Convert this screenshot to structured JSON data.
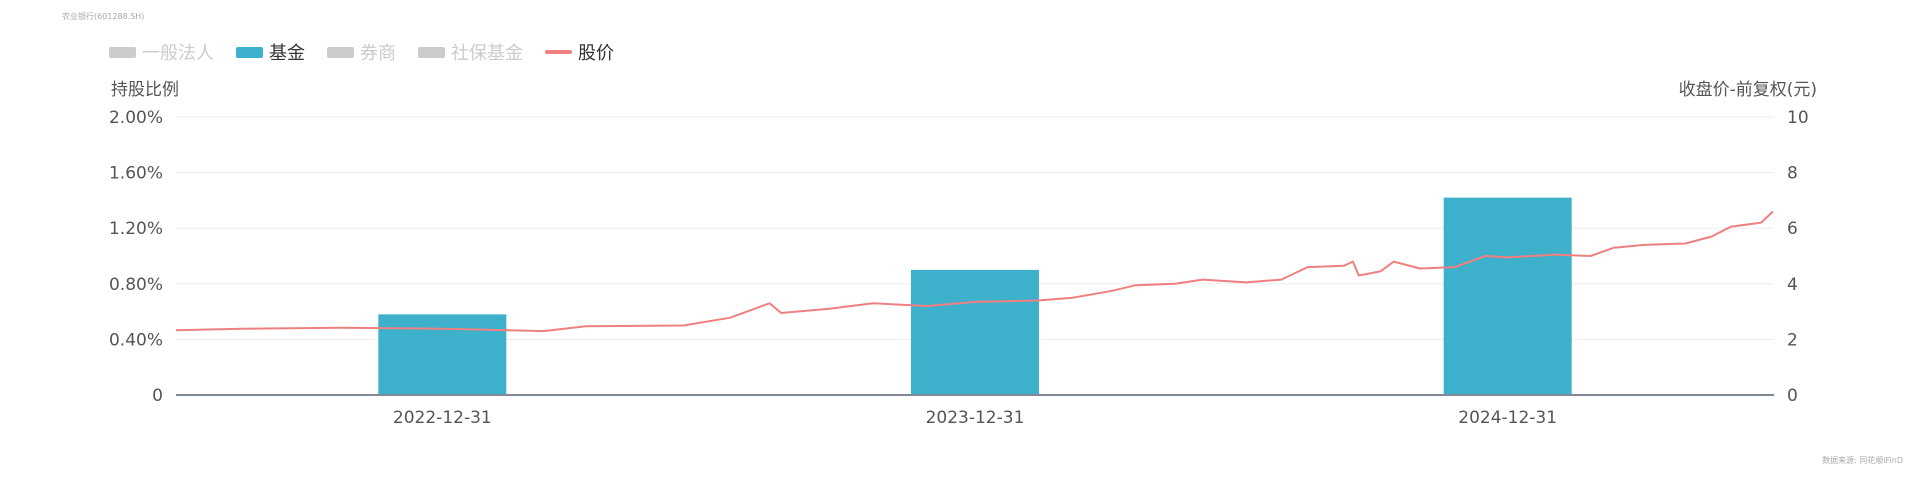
{
  "header": {
    "security": "农业银行(601288.SH)"
  },
  "legend": [
    {
      "label": "一般法人",
      "color": "#cccccc",
      "shape": "rect",
      "active": false
    },
    {
      "label": "基金",
      "color": "#3db0cb",
      "shape": "rect",
      "active": true
    },
    {
      "label": "券商",
      "color": "#cccccc",
      "shape": "rect",
      "active": false
    },
    {
      "label": "社保基金",
      "color": "#cccccc",
      "shape": "rect",
      "active": false
    },
    {
      "label": "股价",
      "color": "#f08080",
      "shape": "line",
      "active": true
    }
  ],
  "footer": {
    "source": "数据来源: 同花顺iFinD"
  },
  "chart_data": {
    "type": "bar+line",
    "categories": [
      "2022-12-31",
      "2023-12-31",
      "2024-12-31"
    ],
    "y_left": {
      "label": "持股比例",
      "ticks": [
        "0",
        "0.40%",
        "0.80%",
        "1.20%",
        "1.60%",
        "2.00%"
      ],
      "range": [
        0,
        2.0
      ],
      "unit": "%"
    },
    "y_right": {
      "label": "收盘价-前复权(元)",
      "ticks": [
        "0",
        "2",
        "4",
        "6",
        "8",
        "10"
      ],
      "range": [
        0,
        10
      ]
    },
    "grid": true,
    "series": [
      {
        "name": "基金",
        "type": "bar",
        "axis": "left",
        "color": "#3db0cb",
        "values": [
          0.58,
          0.9,
          1.42
        ]
      },
      {
        "name": "股价",
        "type": "line",
        "axis": "right",
        "color": "#f08080",
        "points": [
          [
            "2022-07-01",
            2.33
          ],
          [
            "2022-08-15",
            2.38
          ],
          [
            "2022-10-22",
            2.42
          ],
          [
            "2022-12-31",
            2.38
          ],
          [
            "2023-03-10",
            2.3
          ],
          [
            "2023-04-08",
            2.47
          ],
          [
            "2023-06-14",
            2.5
          ],
          [
            "2023-07-16",
            2.78
          ],
          [
            "2023-08-12",
            3.3
          ],
          [
            "2023-08-20",
            2.95
          ],
          [
            "2023-09-22",
            3.1
          ],
          [
            "2023-10-22",
            3.3
          ],
          [
            "2023-11-28",
            3.2
          ],
          [
            "2023-12-31",
            3.35
          ],
          [
            "2024-02-12",
            3.4
          ],
          [
            "2024-03-07",
            3.5
          ],
          [
            "2024-04-03",
            3.75
          ],
          [
            "2024-04-19",
            3.95
          ],
          [
            "2024-05-16",
            4.0
          ],
          [
            "2024-06-04",
            4.15
          ],
          [
            "2024-07-04",
            4.05
          ],
          [
            "2024-07-28",
            4.15
          ],
          [
            "2024-08-15",
            4.6
          ],
          [
            "2024-09-09",
            4.65
          ],
          [
            "2024-09-15",
            4.8
          ],
          [
            "2024-09-19",
            4.3
          ],
          [
            "2024-10-04",
            4.45
          ],
          [
            "2024-10-13",
            4.8
          ],
          [
            "2024-10-31",
            4.55
          ],
          [
            "2024-11-24",
            4.6
          ],
          [
            "2024-12-15",
            5.0
          ],
          [
            "2024-12-31",
            4.95
          ],
          [
            "2025-02-01",
            5.05
          ],
          [
            "2025-02-25",
            5.0
          ],
          [
            "2025-03-13",
            5.3
          ],
          [
            "2025-04-03",
            5.4
          ],
          [
            "2025-05-01",
            5.45
          ],
          [
            "2025-05-19",
            5.7
          ],
          [
            "2025-06-01",
            6.05
          ],
          [
            "2025-06-22",
            6.2
          ],
          [
            "2025-06-30",
            6.6
          ]
        ]
      }
    ]
  }
}
